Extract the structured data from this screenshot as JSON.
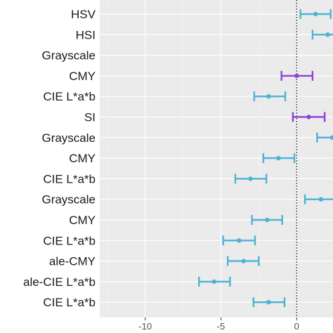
{
  "chart_data": {
    "type": "forest",
    "title": "",
    "xlabel": "",
    "ylabel": "",
    "xlim": [
      -13.0,
      2.4
    ],
    "x_ticks": [
      -10,
      -5,
      0
    ],
    "x_tick_labels": [
      "-10",
      "-5",
      "0"
    ],
    "reference_line": 0,
    "grid": true,
    "background": "#ebebeb",
    "colors": {
      "teal": "#4eb3d3",
      "purple": "#8e44d6"
    },
    "rows": [
      {
        "label": "HSV",
        "estimate": 1.25,
        "low": 0.25,
        "high": 2.25,
        "color": "teal"
      },
      {
        "label": "HSI",
        "estimate": 2.05,
        "low": 1.05,
        "high": 3.05,
        "color": "teal"
      },
      {
        "label": "Grayscale",
        "estimate": null,
        "low": null,
        "high": null,
        "color": "teal"
      },
      {
        "label": "CMY",
        "estimate": 0.0,
        "low": -1.0,
        "high": 1.05,
        "color": "purple"
      },
      {
        "label": "CIE L*a*b",
        "estimate": -1.85,
        "low": -2.8,
        "high": -0.75,
        "color": "teal"
      },
      {
        "label": "SI",
        "estimate": 0.8,
        "low": -0.25,
        "high": 1.85,
        "color": "purple"
      },
      {
        "label": "Grayscale",
        "estimate": 2.35,
        "low": 1.35,
        "high": 3.35,
        "color": "teal"
      },
      {
        "label": "CMY",
        "estimate": -1.2,
        "low": -2.2,
        "high": -0.15,
        "color": "teal"
      },
      {
        "label": "CIE L*a*b",
        "estimate": -3.05,
        "low": -4.05,
        "high": -2.0,
        "color": "teal"
      },
      {
        "label": "Grayscale",
        "estimate": 1.6,
        "low": 0.55,
        "high": 2.65,
        "color": "teal"
      },
      {
        "label": "CMY",
        "estimate": -1.95,
        "low": -2.95,
        "high": -0.95,
        "color": "teal"
      },
      {
        "label": "CIE L*a*b",
        "estimate": -3.8,
        "low": -4.85,
        "high": -2.75,
        "color": "teal"
      },
      {
        "label": "ale-CMY",
        "estimate": -3.5,
        "low": -4.55,
        "high": -2.5,
        "color": "teal"
      },
      {
        "label": "ale-CIE L*a*b",
        "estimate": -5.45,
        "low": -6.45,
        "high": -4.4,
        "color": "teal"
      },
      {
        "label": "CIE L*a*b",
        "estimate": -1.85,
        "low": -2.85,
        "high": -0.8,
        "color": "teal"
      }
    ]
  }
}
